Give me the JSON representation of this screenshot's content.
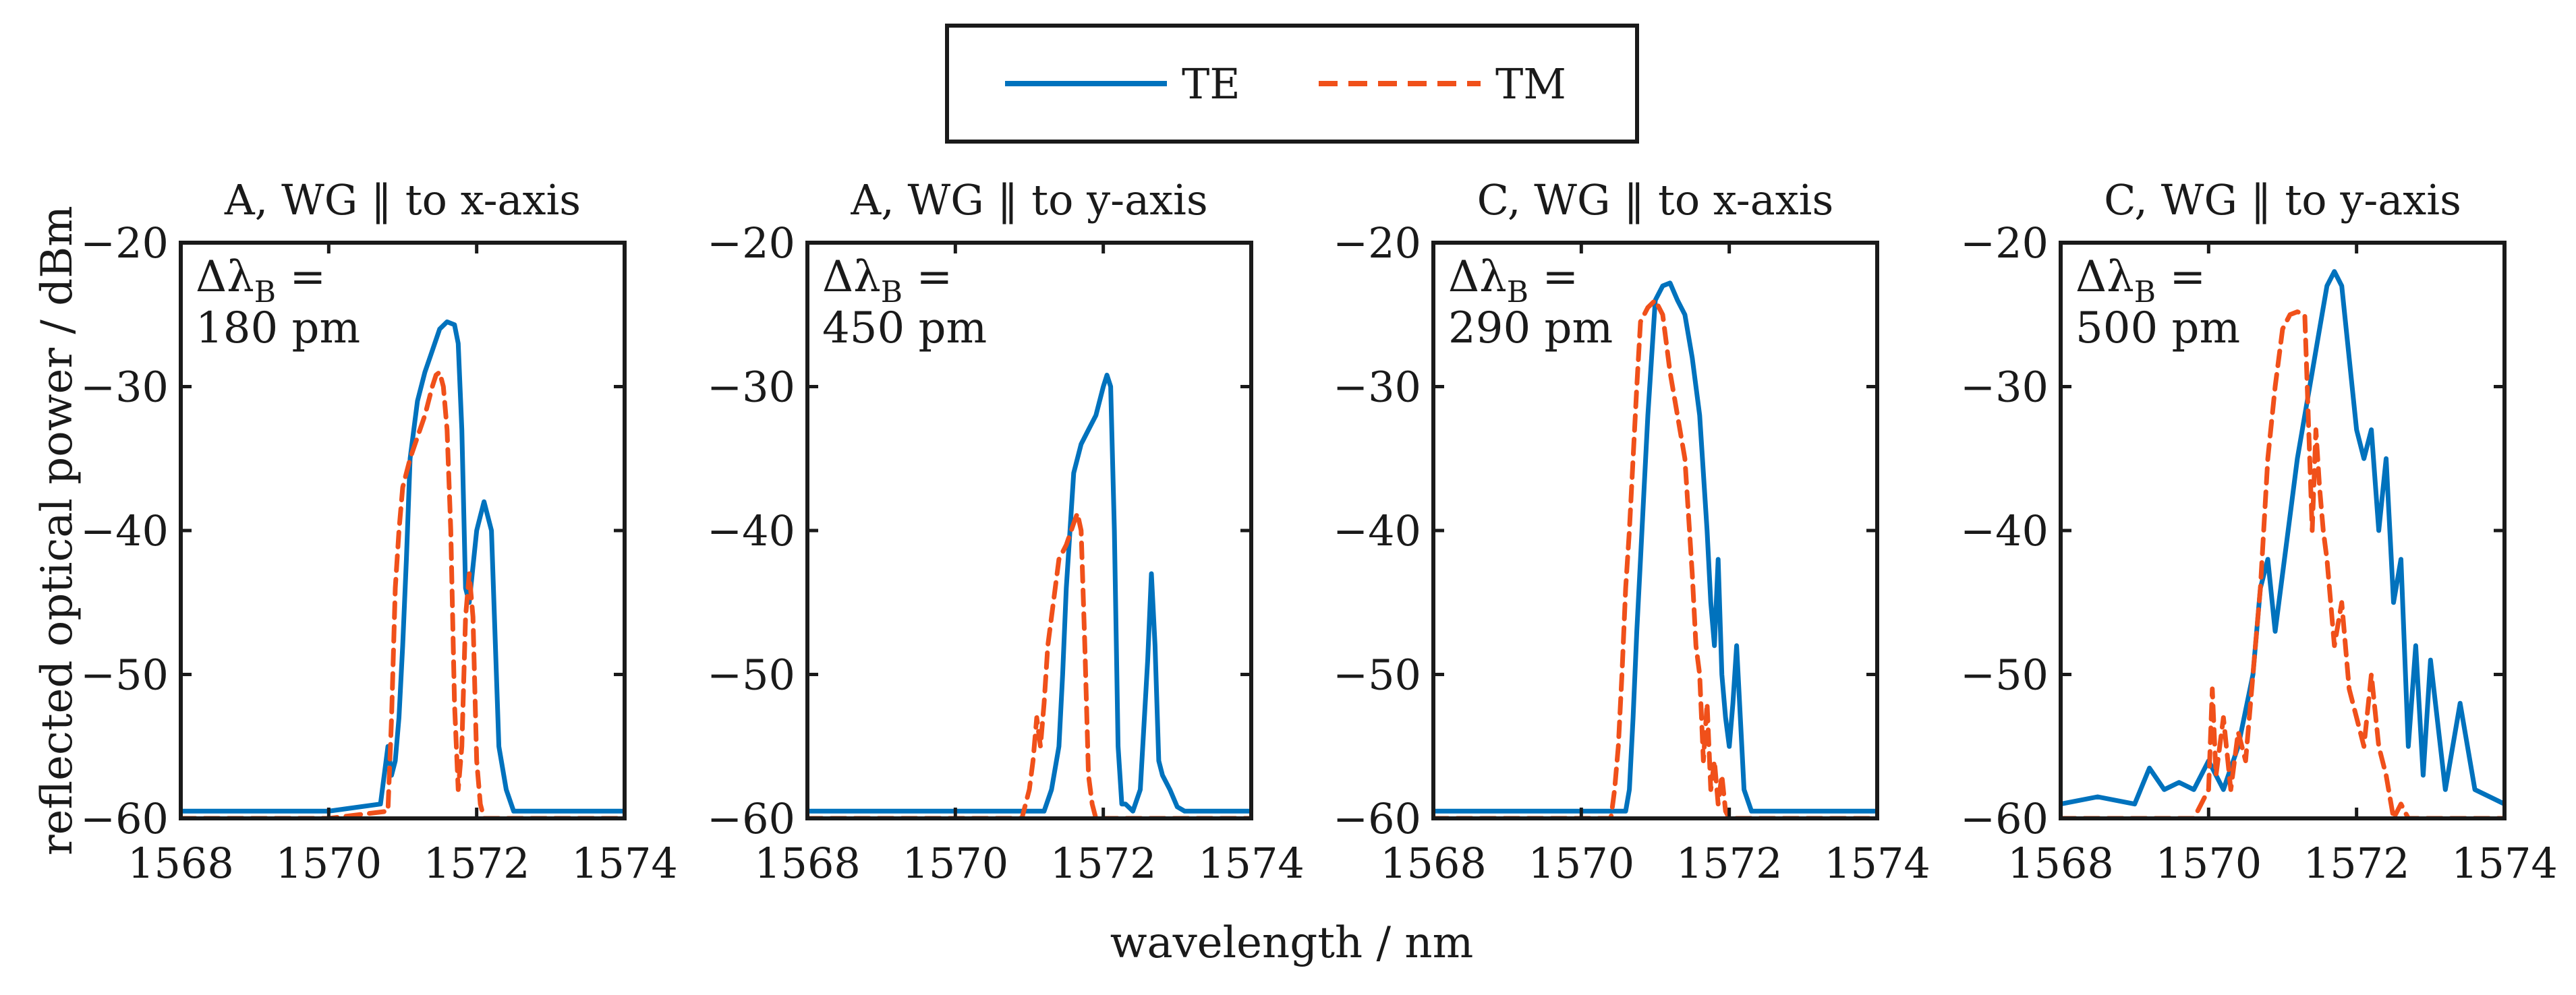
{
  "chart_data": {
    "type": "line",
    "shared_xlabel": "wavelength / nm",
    "shared_ylabel": "reflected optical power / dBm",
    "legend": {
      "placement": "top-center",
      "entries": [
        {
          "name": "TE",
          "color": "#0072BD",
          "style": "solid"
        },
        {
          "name": "TM",
          "color": "#F0501A",
          "style": "dashed"
        }
      ]
    },
    "xlim": [
      1568,
      1574
    ],
    "ylim": [
      -60,
      -20
    ],
    "x_ticks": [
      "1568",
      "1570",
      "1572",
      "1574"
    ],
    "y_ticks": [
      "−20",
      "−30",
      "−40",
      "−50",
      "−60"
    ],
    "panels": [
      {
        "title": "A, WG ‖ to x-axis",
        "delta_label": "Δλ",
        "delta_sub": "B",
        "delta_eq": " =",
        "delta_value": "180 pm",
        "series": [
          {
            "name": "TE",
            "x": [
              1568,
              1570,
              1570.7,
              1570.8,
              1570.85,
              1570.9,
              1570.95,
              1571.0,
              1571.05,
              1571.1,
              1571.2,
              1571.3,
              1571.4,
              1571.5,
              1571.6,
              1571.7,
              1571.75,
              1571.8,
              1571.85,
              1571.9,
              1572.0,
              1572.05,
              1572.1,
              1572.2,
              1572.3,
              1572.4,
              1572.5,
              1574
            ],
            "y": [
              -59.5,
              -59.5,
              -59,
              -55,
              -57,
              -56,
              -53,
              -48,
              -42,
              -35,
              -31,
              -29,
              -27.5,
              -26,
              -25.5,
              -25.7,
              -27,
              -33,
              -44,
              -45,
              -40,
              -39,
              -38,
              -40,
              -55,
              -58,
              -59.5,
              -59.5
            ]
          },
          {
            "name": "TM",
            "x": [
              1568,
              1570,
              1570.8,
              1570.85,
              1570.9,
              1570.95,
              1571.0,
              1571.1,
              1571.2,
              1571.3,
              1571.4,
              1571.45,
              1571.5,
              1571.55,
              1571.6,
              1571.65,
              1571.7,
              1571.75,
              1571.8,
              1571.85,
              1571.9,
              1571.95,
              1572.0,
              1572.05,
              1572.1,
              1572.2,
              1574
            ],
            "y": [
              -60,
              -60,
              -59.5,
              -53,
              -44,
              -40,
              -37,
              -35,
              -33.5,
              -32,
              -30,
              -29.2,
              -29,
              -30,
              -33,
              -40,
              -52,
              -58,
              -55,
              -46,
              -43,
              -46,
              -56,
              -59,
              -60,
              -60,
              -60
            ]
          }
        ]
      },
      {
        "title": "A, WG ‖ to y-axis",
        "delta_label": "Δλ",
        "delta_sub": "B",
        "delta_eq": " =",
        "delta_value": "450 pm",
        "series": [
          {
            "name": "TE",
            "x": [
              1568,
              1571.2,
              1571.3,
              1571.4,
              1571.45,
              1571.5,
              1571.55,
              1571.6,
              1571.7,
              1571.8,
              1571.9,
              1572.0,
              1572.05,
              1572.1,
              1572.15,
              1572.2,
              1572.25,
              1572.3,
              1572.4,
              1572.5,
              1572.6,
              1572.65,
              1572.7,
              1572.75,
              1572.8,
              1572.9,
              1573.0,
              1573.1,
              1574
            ],
            "y": [
              -59.5,
              -59.5,
              -58,
              -55,
              -50,
              -44,
              -40,
              -36,
              -34,
              -33,
              -32,
              -30,
              -29.2,
              -30,
              -40,
              -55,
              -59,
              -59,
              -59.5,
              -58,
              -49,
              -43,
              -48,
              -56,
              -57,
              -58,
              -59.2,
              -59.5,
              -59.5
            ]
          },
          {
            "name": "TM",
            "x": [
              1568,
              1570.9,
              1571.0,
              1571.05,
              1571.1,
              1571.15,
              1571.2,
              1571.25,
              1571.3,
              1571.35,
              1571.4,
              1571.5,
              1571.6,
              1571.65,
              1571.7,
              1571.75,
              1571.8,
              1571.85,
              1571.9,
              1572.0,
              1574
            ],
            "y": [
              -60,
              -60,
              -58,
              -56,
              -53,
              -55,
              -52,
              -48,
              -46,
              -44,
              -42,
              -41,
              -39.5,
              -38.8,
              -40,
              -48,
              -57,
              -59,
              -60,
              -60,
              -60
            ]
          }
        ]
      },
      {
        "title": "C, WG ‖ to x-axis",
        "delta_label": "Δλ",
        "delta_sub": "B",
        "delta_eq": " =",
        "delta_value": "290 pm",
        "series": [
          {
            "name": "TE",
            "x": [
              1568,
              1570.6,
              1570.65,
              1570.7,
              1570.75,
              1570.8,
              1570.85,
              1570.9,
              1570.95,
              1571.0,
              1571.1,
              1571.2,
              1571.3,
              1571.4,
              1571.5,
              1571.6,
              1571.7,
              1571.75,
              1571.8,
              1571.85,
              1571.9,
              1571.95,
              1572.0,
              1572.05,
              1572.1,
              1572.15,
              1572.2,
              1572.3,
              1574
            ],
            "y": [
              -59.5,
              -59.5,
              -58,
              -53,
              -47,
              -42,
              -37,
              -32,
              -28,
              -24,
              -23,
              -22.8,
              -24,
              -25,
              -28,
              -32,
              -40,
              -45,
              -48,
              -42,
              -50,
              -53,
              -55,
              -52,
              -48,
              -53,
              -58,
              -59.5,
              -59.5
            ]
          },
          {
            "name": "TM",
            "x": [
              1568,
              1570.4,
              1570.45,
              1570.5,
              1570.55,
              1570.6,
              1570.65,
              1570.7,
              1570.75,
              1570.8,
              1570.9,
              1571.0,
              1571.1,
              1571.2,
              1571.3,
              1571.4,
              1571.5,
              1571.55,
              1571.6,
              1571.65,
              1571.7,
              1571.75,
              1571.8,
              1571.85,
              1571.9,
              1571.95,
              1572.0,
              1574
            ],
            "y": [
              -60,
              -60,
              -58,
              -55,
              -50,
              -44,
              -40,
              -35,
              -30,
              -25.5,
              -24.5,
              -24,
              -25,
              -29,
              -32,
              -35,
              -43,
              -48,
              -50,
              -56,
              -52,
              -58,
              -56,
              -59,
              -57,
              -59.5,
              -60,
              -60
            ]
          }
        ]
      },
      {
        "title": "C, WG ‖ to y-axis",
        "delta_label": "Δλ",
        "delta_sub": "B",
        "delta_eq": " =",
        "delta_value": "500 pm",
        "series": [
          {
            "name": "TE",
            "x": [
              1568,
              1568.5,
              1569.0,
              1569.2,
              1569.4,
              1569.6,
              1569.8,
              1570.0,
              1570.2,
              1570.4,
              1570.6,
              1570.7,
              1570.8,
              1570.9,
              1571.0,
              1571.1,
              1571.2,
              1571.3,
              1571.4,
              1571.5,
              1571.6,
              1571.7,
              1571.8,
              1571.9,
              1572.0,
              1572.1,
              1572.2,
              1572.3,
              1572.4,
              1572.5,
              1572.6,
              1572.7,
              1572.8,
              1572.9,
              1573.0,
              1573.2,
              1573.4,
              1573.6,
              1574
            ],
            "y": [
              -59,
              -58.5,
              -59,
              -56.5,
              -58,
              -57.5,
              -58,
              -56,
              -58,
              -55,
              -50,
              -44,
              -42,
              -47,
              -43,
              -39,
              -35,
              -32,
              -29,
              -26,
              -23,
              -22,
              -23,
              -28,
              -33,
              -35,
              -33,
              -40,
              -35,
              -45,
              -42,
              -55,
              -48,
              -57,
              -49,
              -58,
              -52,
              -58,
              -59
            ]
          },
          {
            "name": "TM",
            "x": [
              1568,
              1569.8,
              1570.0,
              1570.05,
              1570.1,
              1570.2,
              1570.3,
              1570.4,
              1570.5,
              1570.6,
              1570.7,
              1570.8,
              1570.9,
              1571.0,
              1571.1,
              1571.2,
              1571.3,
              1571.4,
              1571.45,
              1571.5,
              1571.55,
              1571.6,
              1571.7,
              1571.8,
              1571.9,
              1572.0,
              1572.1,
              1572.2,
              1572.3,
              1572.4,
              1572.5,
              1572.6,
              1572.7,
              1574
            ],
            "y": [
              -60,
              -60,
              -58,
              -51,
              -57,
              -53,
              -58,
              -54,
              -56,
              -50,
              -44,
              -35,
              -30,
              -26,
              -25,
              -24.8,
              -25,
              -40,
              -33,
              -37,
              -40,
              -42,
              -48,
              -45,
              -51,
              -53,
              -55,
              -50,
              -55,
              -57,
              -60,
              -59,
              -60,
              -60
            ]
          }
        ]
      }
    ]
  }
}
